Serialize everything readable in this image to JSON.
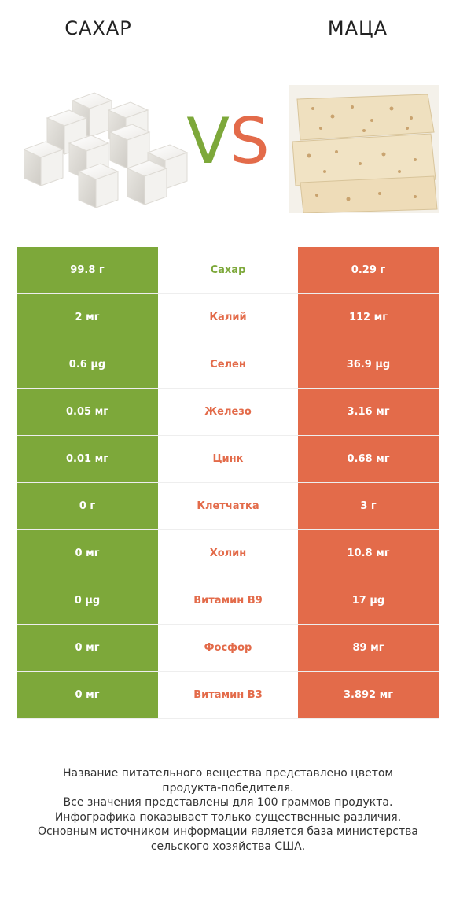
{
  "header": {
    "left_title": "САХАР",
    "right_title": "МАЦА",
    "vs_v": "V",
    "vs_s": "S"
  },
  "images": {
    "left": "sugar-cubes",
    "right": "matzo-crackers"
  },
  "colors": {
    "left": "#7da83a",
    "right": "#e36b4a"
  },
  "rows": [
    {
      "left": "99.8 г",
      "nutrient": "Сахар",
      "right": "0.29 г",
      "winner": "left"
    },
    {
      "left": "2 мг",
      "nutrient": "Калий",
      "right": "112 мг",
      "winner": "right"
    },
    {
      "left": "0.6 µg",
      "nutrient": "Селен",
      "right": "36.9 µg",
      "winner": "right"
    },
    {
      "left": "0.05 мг",
      "nutrient": "Железо",
      "right": "3.16 мг",
      "winner": "right"
    },
    {
      "left": "0.01 мг",
      "nutrient": "Цинк",
      "right": "0.68 мг",
      "winner": "right"
    },
    {
      "left": "0 г",
      "nutrient": "Клетчатка",
      "right": "3 г",
      "winner": "right"
    },
    {
      "left": "0 мг",
      "nutrient": "Холин",
      "right": "10.8 мг",
      "winner": "right"
    },
    {
      "left": "0 µg",
      "nutrient": "Витамин B9",
      "right": "17 µg",
      "winner": "right"
    },
    {
      "left": "0 мг",
      "nutrient": "Фосфор",
      "right": "89 мг",
      "winner": "right"
    },
    {
      "left": "0 мг",
      "nutrient": "Витамин B3",
      "right": "3.892 мг",
      "winner": "right"
    }
  ],
  "footer": {
    "line1": "Название питательного вещества представлено цветом",
    "line2": "продукта-победителя.",
    "line3": "Все значения представлены для 100 граммов продукта.",
    "line4": "Инфографика показывает только существенные различия.",
    "line5": "Основным источником информации является база министерства",
    "line6": "сельского хозяйства США."
  }
}
